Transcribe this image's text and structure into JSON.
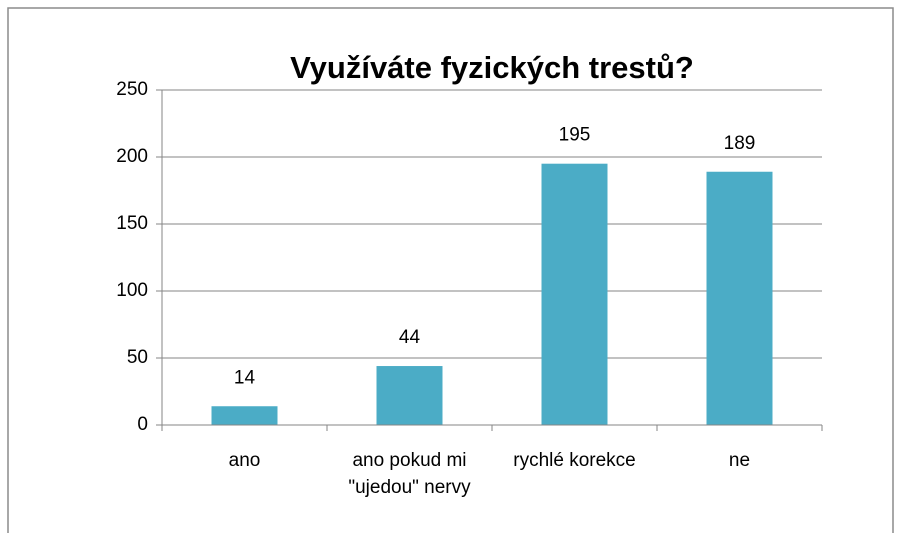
{
  "chart_data": {
    "type": "bar",
    "title": "Využíváte fyzických trestů?",
    "categories": [
      "ano",
      "ano pokud mi \"ujedou\" nervy",
      "rychlé korekce",
      "ne"
    ],
    "values": [
      14,
      44,
      195,
      189
    ],
    "color": "#4bacc6",
    "ylim": [
      0,
      250
    ],
    "yticks": [
      0,
      50,
      100,
      150,
      200,
      250
    ],
    "grid": true
  }
}
